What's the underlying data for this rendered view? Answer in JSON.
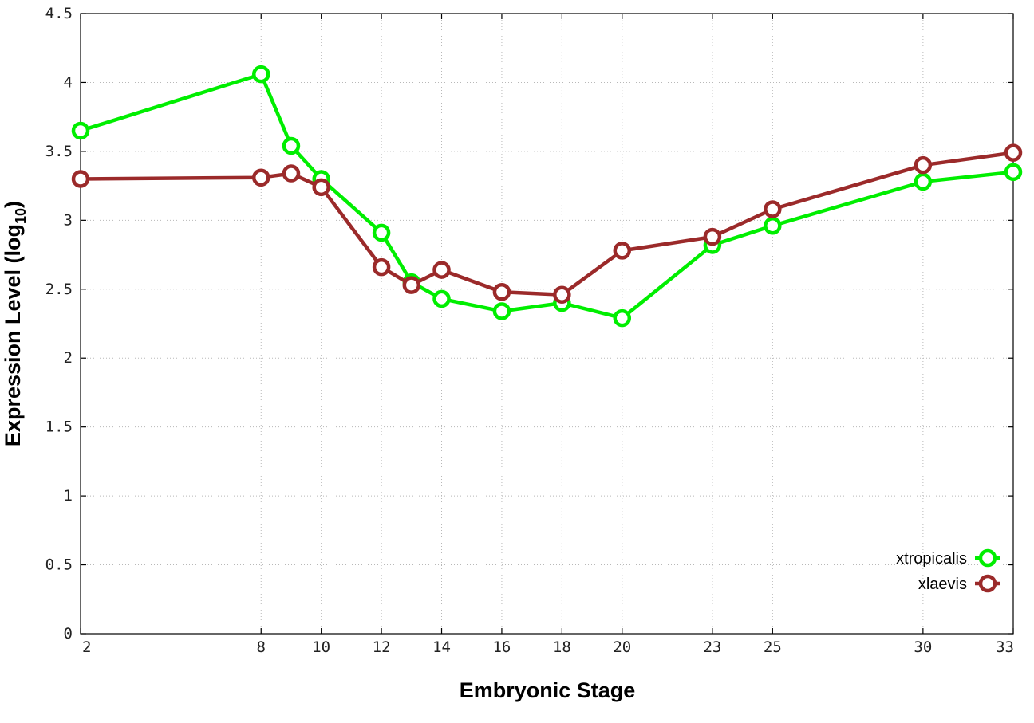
{
  "chart_data": {
    "type": "line",
    "xlabel": "Embryonic Stage",
    "ylabel_main": "Expression Level (log",
    "ylabel_sub": "10",
    "ylabel_close": ")",
    "xlim": [
      2,
      33
    ],
    "ylim": [
      0,
      4.5
    ],
    "x_ticks": [
      2,
      8,
      10,
      12,
      14,
      16,
      18,
      20,
      23,
      25,
      30,
      33
    ],
    "x_tick_labels": [
      "2",
      "8",
      "10",
      "12",
      "14",
      "16",
      "18",
      "20",
      "23",
      "25",
      "30",
      "33"
    ],
    "y_ticks": [
      0,
      0.5,
      1,
      1.5,
      2,
      2.5,
      3,
      3.5,
      4,
      4.5
    ],
    "y_tick_labels": [
      "0",
      "0.5",
      "1",
      "1.5",
      "2",
      "2.5",
      "3",
      "3.5",
      "4",
      "4.5"
    ],
    "grid": true,
    "legend_position": "bottom-right",
    "series": [
      {
        "name": "xtropicalis",
        "color": "#00ee00",
        "x": [
          2,
          8,
          9,
          10,
          12,
          13,
          14,
          16,
          18,
          20,
          23,
          25,
          30,
          33
        ],
        "y": [
          3.65,
          4.06,
          3.54,
          3.3,
          2.91,
          2.55,
          2.43,
          2.34,
          2.4,
          2.29,
          2.82,
          2.96,
          3.28,
          3.35
        ]
      },
      {
        "name": "xlaevis",
        "color": "#9b2a2a",
        "x": [
          2,
          8,
          9,
          10,
          12,
          13,
          14,
          16,
          18,
          20,
          23,
          25,
          30,
          33
        ],
        "y": [
          3.3,
          3.31,
          3.34,
          3.24,
          2.66,
          2.53,
          2.64,
          2.48,
          2.46,
          2.78,
          2.88,
          3.08,
          3.4,
          3.49
        ]
      }
    ]
  }
}
